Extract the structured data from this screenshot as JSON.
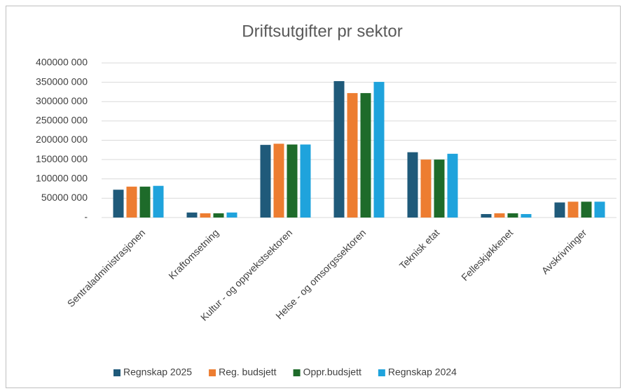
{
  "chart_data": {
    "type": "bar",
    "title": "Driftsutgifter pr sektor",
    "categories": [
      "Sentraladministrasjonen",
      "Kraftomsetning",
      "Kultur - og oppvekstsektoren",
      "Helse - og omsorgssektoren",
      "Teknisk etat",
      "Felleskjøkkenet",
      "Avskrivninger"
    ],
    "series": [
      {
        "name": "Regnskap 2025",
        "color": "#1f5a7a",
        "values": [
          72000000,
          13000000,
          188000000,
          353000000,
          169000000,
          9000000,
          39000000
        ]
      },
      {
        "name": "Reg. budsjett",
        "color": "#ed7d31",
        "values": [
          80000000,
          11000000,
          191000000,
          322000000,
          150000000,
          11000000,
          41000000
        ]
      },
      {
        "name": "Oppr.budsjett",
        "color": "#1e6b2a",
        "values": [
          80000000,
          11000000,
          189000000,
          322000000,
          150000000,
          11000000,
          41000000
        ]
      },
      {
        "name": "Regnskap 2024",
        "color": "#1fa3dc",
        "values": [
          82000000,
          13000000,
          189000000,
          351000000,
          165000000,
          9000000,
          41000000
        ]
      }
    ],
    "ylim": [
      0,
      400000000
    ],
    "yticks": [
      {
        "value": 0,
        "label": "-"
      },
      {
        "value": 50000000,
        "label": "50000 000"
      },
      {
        "value": 100000000,
        "label": "100000 000"
      },
      {
        "value": 150000000,
        "label": "150000 000"
      },
      {
        "value": 200000000,
        "label": "200000 000"
      },
      {
        "value": 250000000,
        "label": "250000 000"
      },
      {
        "value": 300000000,
        "label": "300000 000"
      },
      {
        "value": 350000000,
        "label": "350000 000"
      },
      {
        "value": 400000000,
        "label": "400000 000"
      }
    ],
    "grid": true,
    "legend": "bottom"
  }
}
